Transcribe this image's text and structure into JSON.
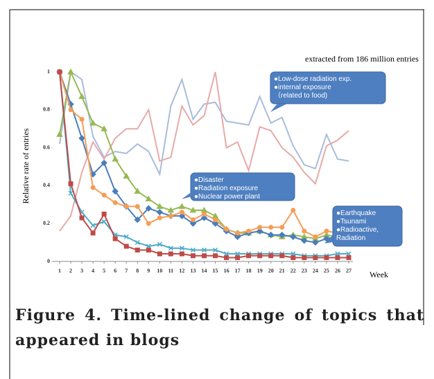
{
  "chart_data": {
    "type": "line",
    "subtitle": "extracted from 186 million entries",
    "ylabel": "Relative rate of entries",
    "xlabel": "Week",
    "caption": "Figure 4. Time-lined change of topics that appeared in blogs",
    "x": [
      1,
      2,
      3,
      4,
      5,
      6,
      7,
      8,
      9,
      10,
      11,
      12,
      13,
      14,
      15,
      16,
      17,
      18,
      19,
      20,
      21,
      22,
      23,
      24,
      25,
      26,
      27
    ],
    "xlim": [
      1,
      27
    ],
    "xticks": [
      1,
      2,
      3,
      4,
      5,
      6,
      7,
      8,
      9,
      10,
      11,
      12,
      13,
      14,
      15,
      16,
      17,
      18,
      19,
      20,
      21,
      22,
      23,
      24,
      25,
      26,
      27
    ],
    "ylim": [
      0,
      1
    ],
    "yticks": [
      0,
      0.2,
      0.4,
      0.6,
      0.8,
      1
    ],
    "series": [
      {
        "color": "#a9bcdb",
        "marker": "none",
        "values": [
          0.62,
          1,
          0.96,
          0.66,
          0.55,
          0.58,
          0.57,
          0.62,
          0.58,
          0.46,
          0.82,
          0.96,
          0.75,
          0.83,
          0.84,
          0.74,
          0.73,
          0.72,
          0.87,
          0.73,
          0.76,
          0.61,
          0.51,
          0.49,
          0.67,
          0.54,
          0.53
        ]
      },
      {
        "color": "#e6aaa8",
        "marker": "none",
        "values": [
          0.16,
          0.24,
          0.47,
          0.63,
          0.54,
          0.65,
          0.7,
          0.7,
          0.8,
          0.53,
          0.55,
          0.82,
          0.72,
          0.77,
          1,
          0.6,
          0.63,
          0.48,
          0.71,
          0.69,
          0.6,
          0.55,
          0.47,
          0.41,
          0.61,
          0.64,
          0.69
        ]
      },
      {
        "color": "#98b954",
        "marker": "triangle",
        "values": [
          0.67,
          1,
          0.87,
          0.73,
          0.7,
          0.54,
          0.45,
          0.37,
          0.33,
          0.29,
          0.27,
          0.29,
          0.27,
          0.27,
          0.24,
          0.17,
          0.15,
          0.15,
          0.16,
          0.14,
          0.13,
          0.14,
          0.13,
          0.12,
          0.14,
          0.13,
          0.13
        ]
      },
      {
        "color": "#4a7ebb",
        "marker": "diamond",
        "values": [
          1,
          0.83,
          0.65,
          0.46,
          0.52,
          0.37,
          0.29,
          0.22,
          0.28,
          0.26,
          0.24,
          0.24,
          0.2,
          0.23,
          0.2,
          0.16,
          0.13,
          0.15,
          0.16,
          0.14,
          0.14,
          0.13,
          0.11,
          0.1,
          0.12,
          0.13,
          0.13
        ]
      },
      {
        "color": "#f59d56",
        "marker": "circle",
        "values": [
          1,
          0.8,
          0.75,
          0.39,
          0.35,
          0.31,
          0.29,
          0.29,
          0.2,
          0.23,
          0.24,
          0.26,
          0.22,
          0.25,
          0.22,
          0.17,
          0.15,
          0.16,
          0.18,
          0.18,
          0.18,
          0.27,
          0.16,
          0.13,
          0.16,
          0.15,
          0.15
        ]
      },
      {
        "color": "#4bacc6",
        "marker": "x",
        "values": [
          1,
          0.36,
          0.26,
          0.19,
          0.21,
          0.14,
          0.13,
          0.1,
          0.08,
          0.09,
          0.07,
          0.07,
          0.06,
          0.06,
          0.06,
          0.04,
          0.04,
          0.04,
          0.04,
          0.04,
          0.04,
          0.04,
          0.03,
          0.03,
          0.03,
          0.04,
          0.04
        ]
      },
      {
        "color": "#be4b48",
        "marker": "square",
        "values": [
          1,
          0.41,
          0.23,
          0.15,
          0.25,
          0.12,
          0.08,
          0.06,
          0.06,
          0.04,
          0.04,
          0.04,
          0.03,
          0.03,
          0.03,
          0.02,
          0.02,
          0.03,
          0.03,
          0.03,
          0.03,
          0.02,
          0.02,
          0.02,
          0.02,
          0.02,
          0.02
        ]
      }
    ],
    "annotations": [
      {
        "lines": [
          "●Low-dose radiation exp.",
          "●internal exposure",
          "（related to food)"
        ]
      },
      {
        "lines": [
          "●Disaster",
          "●Radiation exposure",
          "●Nuclear power plant"
        ]
      },
      {
        "lines": [
          "●Earthquake",
          "●Tsunami",
          "●Radioactive,",
          "Radiation"
        ]
      }
    ]
  }
}
